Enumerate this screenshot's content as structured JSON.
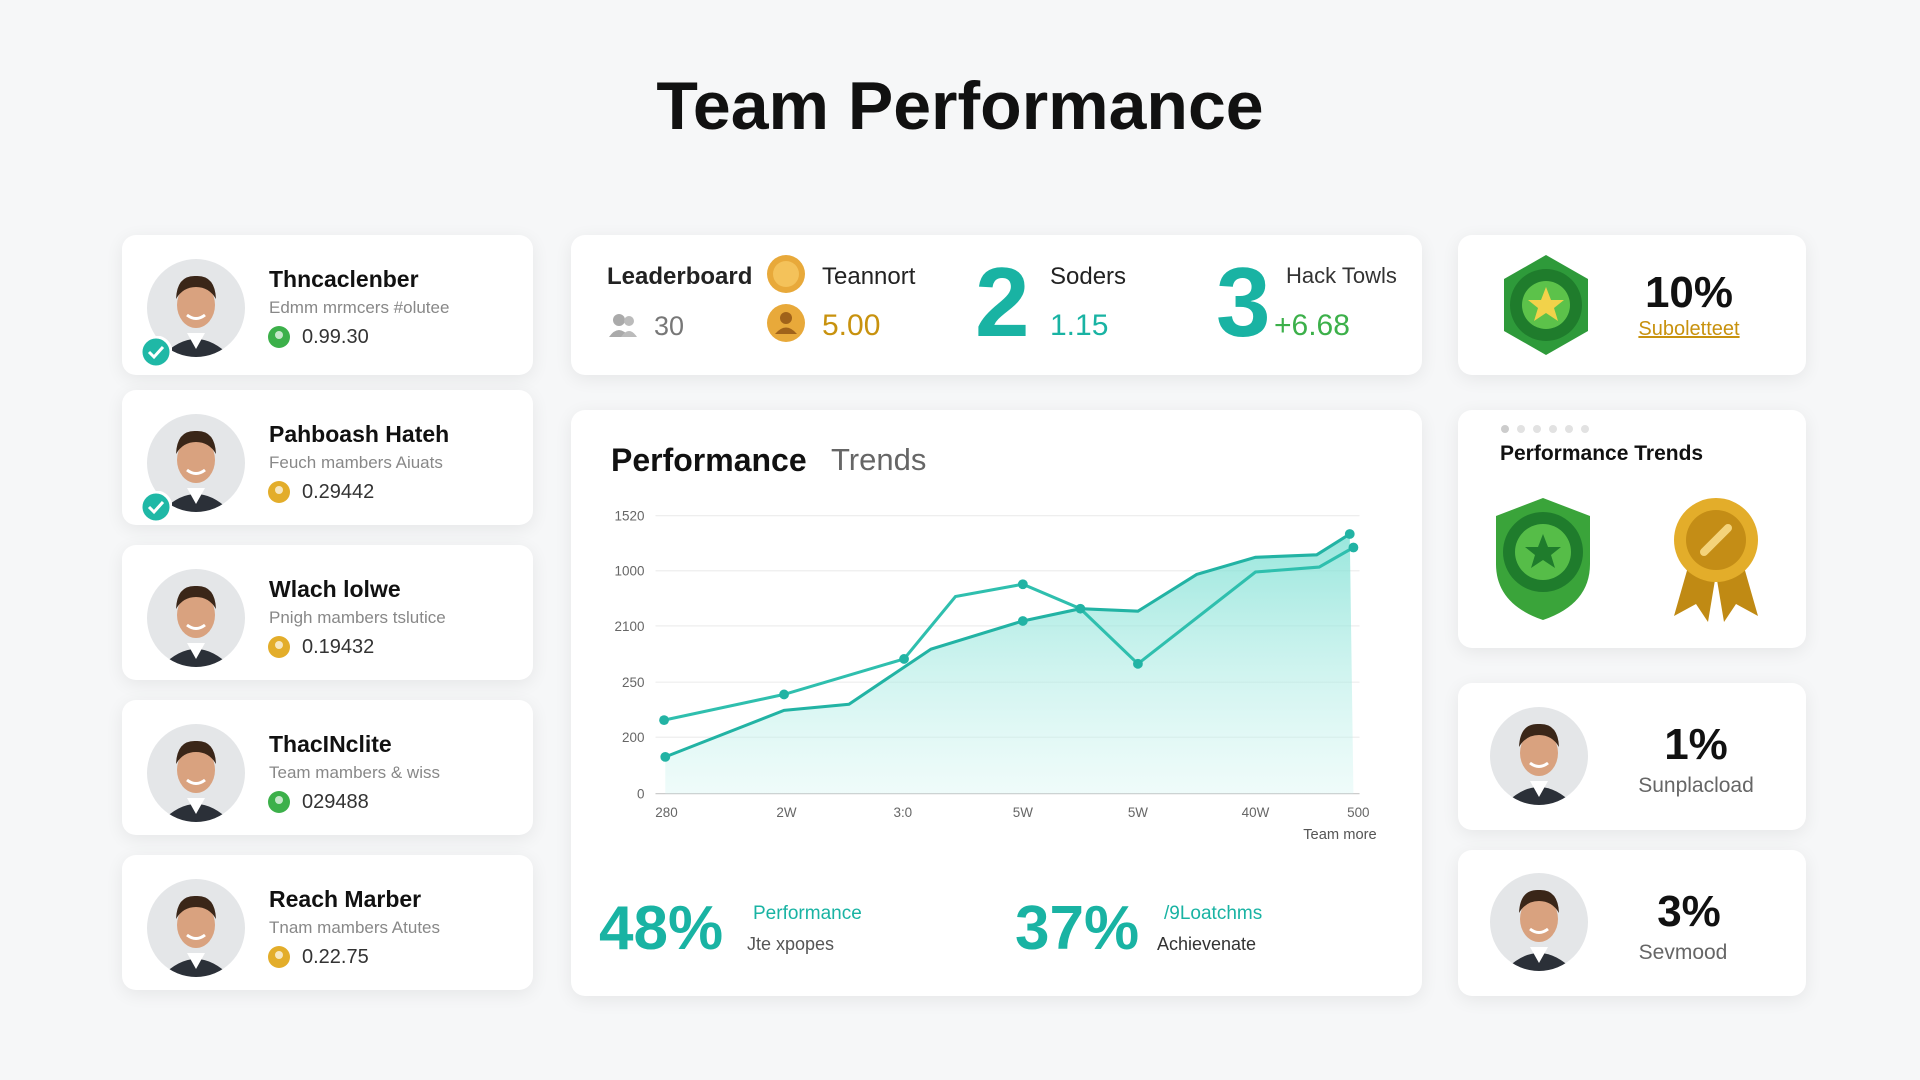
{
  "header": {
    "title": "Team Performance"
  },
  "members": [
    {
      "name": "Thncaclenber",
      "subtitle": "Edmm mrmcers #olutee",
      "value": "0.99.30"
    },
    {
      "name": "Pahboash Hateh",
      "subtitle": "Feuch mambers Aiuats",
      "value": "0.29442"
    },
    {
      "name": "Wlach lolwe",
      "subtitle": "Pnigh mambers tslutice",
      "value": "0.19432"
    },
    {
      "name": "ThacINclite",
      "subtitle": "Team mambers & wiss",
      "value": "029488"
    },
    {
      "name": "Reach Marber",
      "subtitle": "Tnam mambers Atutes",
      "value": "0.22.75"
    }
  ],
  "stats": {
    "leaderboard": {
      "label": "Leaderboard",
      "value": "30"
    },
    "team": {
      "label": "Teannort",
      "value": "5.00"
    },
    "second": {
      "rank": "2",
      "label": "Soders",
      "value": "1.15"
    },
    "third": {
      "rank": "3",
      "label": "Hack Towls",
      "value": "+6.68"
    }
  },
  "chart": {
    "title": "Performance",
    "subtitle": "Trends",
    "y_labels": [
      "1520",
      "1000",
      "2100",
      "250",
      "200",
      "0"
    ],
    "x_labels": [
      "280",
      "2W",
      "3:0",
      "5W",
      "5W",
      "40W",
      "500"
    ],
    "note": "Team more",
    "kpis": [
      {
        "value": "48%",
        "label": "Performance",
        "sub": "Jte xpopes"
      },
      {
        "value": "37%",
        "label": "/9Loatchms",
        "sub": "Achievenate"
      }
    ]
  },
  "side": [
    {
      "value": "10%",
      "label": "Suboletteet"
    },
    {
      "title": "Performance Trends"
    },
    {
      "value": "1%",
      "label": "Sunplacload"
    },
    {
      "value": "3%",
      "label": "Sevmood"
    }
  ]
}
